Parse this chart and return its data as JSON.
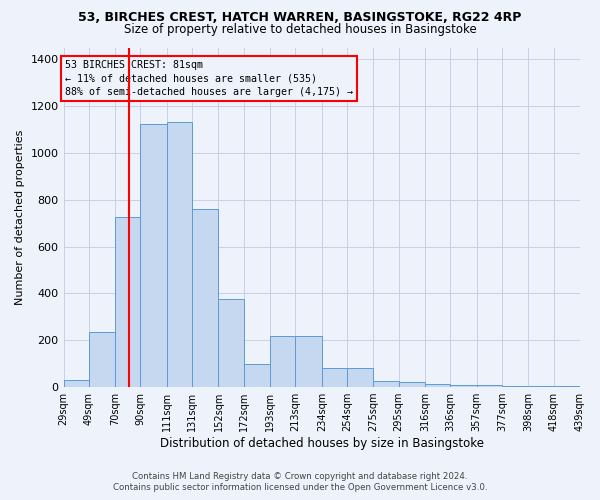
{
  "title_line1": "53, BIRCHES CREST, HATCH WARREN, BASINGSTOKE, RG22 4RP",
  "title_line2": "Size of property relative to detached houses in Basingstoke",
  "xlabel": "Distribution of detached houses by size in Basingstoke",
  "ylabel": "Number of detached properties",
  "footer_line1": "Contains HM Land Registry data © Crown copyright and database right 2024.",
  "footer_line2": "Contains public sector information licensed under the Open Government Licence v3.0.",
  "annotation_title": "53 BIRCHES CREST: 81sqm",
  "annotation_line2": "← 11% of detached houses are smaller (535)",
  "annotation_line3": "88% of semi-detached houses are larger (4,175) →",
  "bar_edges": [
    29,
    49,
    70,
    90,
    111,
    131,
    152,
    172,
    193,
    213,
    234,
    254,
    275,
    295,
    316,
    336,
    357,
    377,
    398,
    418,
    439
  ],
  "bar_values": [
    30,
    235,
    725,
    1125,
    1130,
    760,
    375,
    100,
    220,
    220,
    80,
    80,
    25,
    20,
    15,
    10,
    10,
    5,
    3,
    3
  ],
  "bar_color": "#c5d8ef",
  "bar_edge_color": "#5b9bd5",
  "vline_x": 81,
  "vline_color": "red",
  "annotation_box_color": "red",
  "ylim": [
    0,
    1450
  ],
  "yticks": [
    0,
    200,
    400,
    600,
    800,
    1000,
    1200,
    1400
  ],
  "bg_color": "#eef2fb",
  "grid_color": "#c8cfe8"
}
